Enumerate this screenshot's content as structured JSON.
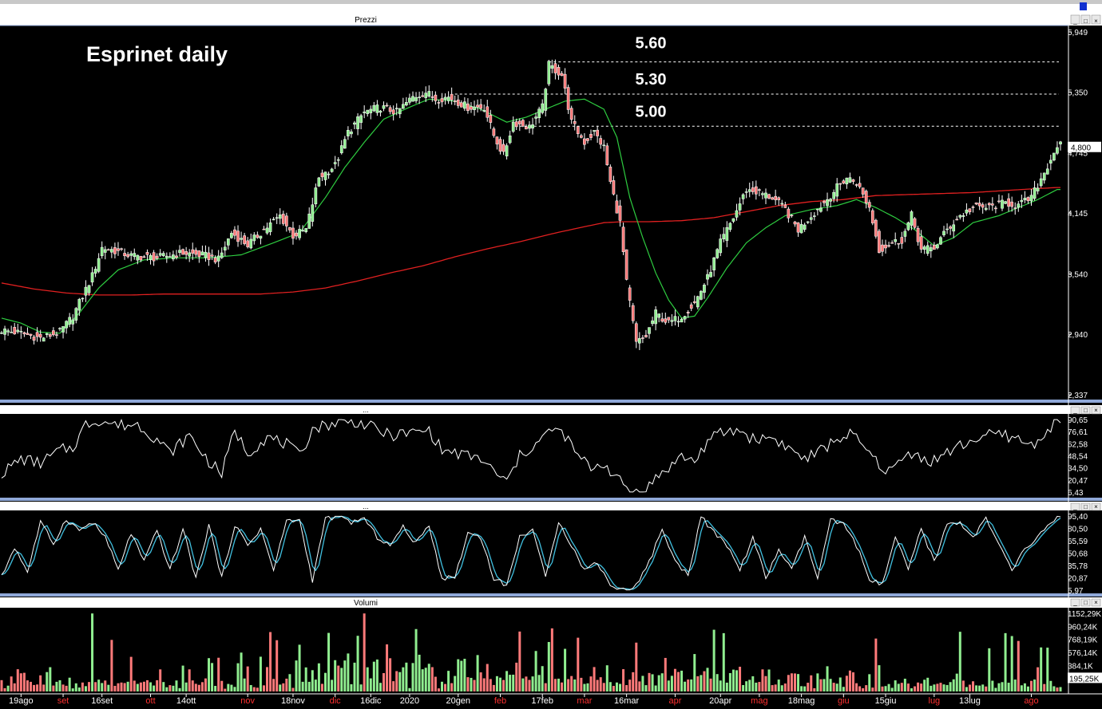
{
  "window": {
    "pane_titles": {
      "price": "Prezzi",
      "osc1": "...",
      "osc2": "...",
      "volume": "Volumi"
    },
    "controls": [
      "_",
      "□",
      "×"
    ]
  },
  "colors": {
    "background": "#000000",
    "up_candle": "#90ee90",
    "down_candle": "#ff7a7a",
    "ma_short": "#2ecc40",
    "ma_long": "#e02020",
    "osc_line": "#ffffff",
    "stoch_k": "#ffffff",
    "stoch_d": "#40c0e0",
    "grid_dash": "#ffffff",
    "pane_border": "#8fa8d8"
  },
  "chart_data": {
    "type": "candlestick",
    "title": "Esprinet daily",
    "levels": [
      {
        "label": "5.60",
        "value": 5.65,
        "from_index": 169
      },
      {
        "label": "5.30",
        "value": 5.33,
        "from_index": 140
      },
      {
        "label": "5.00",
        "value": 5.01,
        "from_index": 160
      }
    ],
    "price_axis": {
      "min": 2.337,
      "max": 5.949,
      "ticks": [
        "5,949",
        "5,350",
        "4,745",
        "4,145",
        "3,540",
        "2,940",
        "2,337"
      ],
      "last_label": "4,800"
    },
    "rsi_axis": {
      "min": 6.43,
      "max": 90.65,
      "ticks": [
        "90,65",
        "76,61",
        "62,58",
        "48,54",
        "34,50",
        "20,47",
        "6,43"
      ]
    },
    "stoch_axis": {
      "min": 5.97,
      "max": 95.4,
      "ticks": [
        "95,40",
        "80,50",
        "65,59",
        "50,68",
        "35,78",
        "20,87",
        "5,97"
      ]
    },
    "volume_axis": {
      "max": 1152290,
      "ticks": [
        "1152,29K",
        "960,24K",
        "768,19K",
        "576,14K",
        "384,1K",
        "195,25K"
      ]
    },
    "x_labels": [
      {
        "text": "19ago",
        "index": 6,
        "color": "#ffffff"
      },
      {
        "text": "set",
        "index": 19,
        "color": "#ff3030"
      },
      {
        "text": "16set",
        "index": 31,
        "color": "#ffffff"
      },
      {
        "text": "ott",
        "index": 46,
        "color": "#ff3030"
      },
      {
        "text": "14ott",
        "index": 57,
        "color": "#ffffff"
      },
      {
        "text": "nov",
        "index": 76,
        "color": "#ff3030"
      },
      {
        "text": "18nov",
        "index": 90,
        "color": "#ffffff"
      },
      {
        "text": "dic",
        "index": 103,
        "color": "#ff3030"
      },
      {
        "text": "16dic",
        "index": 114,
        "color": "#ffffff"
      },
      {
        "text": "2020",
        "index": 126,
        "color": "#ffffff"
      },
      {
        "text": "20gen",
        "index": 141,
        "color": "#ffffff"
      },
      {
        "text": "feb",
        "index": 154,
        "color": "#ff3030"
      },
      {
        "text": "17feb",
        "index": 167,
        "color": "#ffffff"
      },
      {
        "text": "mar",
        "index": 180,
        "color": "#ff3030"
      },
      {
        "text": "16mar",
        "index": 193,
        "color": "#ffffff"
      },
      {
        "text": "apr",
        "index": 208,
        "color": "#ff3030"
      },
      {
        "text": "20apr",
        "index": 222,
        "color": "#ffffff"
      },
      {
        "text": "mag",
        "index": 234,
        "color": "#ff3030"
      },
      {
        "text": "18mag",
        "index": 247,
        "color": "#ffffff"
      },
      {
        "text": "giu",
        "index": 260,
        "color": "#ff3030"
      },
      {
        "text": "15giu",
        "index": 273,
        "color": "#ffffff"
      },
      {
        "text": "lug",
        "index": 288,
        "color": "#ff3030"
      },
      {
        "text": "13lug",
        "index": 299,
        "color": "#ffffff"
      },
      {
        "text": "ago",
        "index": 318,
        "color": "#ff3030"
      }
    ],
    "price_anchors": [
      [
        0,
        2.98
      ],
      [
        6,
        2.95
      ],
      [
        12,
        2.9
      ],
      [
        18,
        2.96
      ],
      [
        22,
        3.12
      ],
      [
        28,
        3.52
      ],
      [
        31,
        3.8
      ],
      [
        34,
        3.78
      ],
      [
        40,
        3.72
      ],
      [
        48,
        3.7
      ],
      [
        56,
        3.75
      ],
      [
        63,
        3.72
      ],
      [
        67,
        3.68
      ],
      [
        71,
        3.95
      ],
      [
        76,
        3.83
      ],
      [
        80,
        3.95
      ],
      [
        86,
        4.12
      ],
      [
        90,
        3.92
      ],
      [
        94,
        3.98
      ],
      [
        98,
        4.5
      ],
      [
        103,
        4.62
      ],
      [
        107,
        4.95
      ],
      [
        112,
        5.15
      ],
      [
        117,
        5.2
      ],
      [
        122,
        5.15
      ],
      [
        127,
        5.3
      ],
      [
        131,
        5.35
      ],
      [
        134,
        5.28
      ],
      [
        138,
        5.3
      ],
      [
        144,
        5.2
      ],
      [
        149,
        5.2
      ],
      [
        152,
        4.92
      ],
      [
        155,
        4.72
      ],
      [
        158,
        5.05
      ],
      [
        163,
        5.0
      ],
      [
        167,
        5.2
      ],
      [
        169,
        5.62
      ],
      [
        173,
        5.52
      ],
      [
        176,
        5.05
      ],
      [
        180,
        4.85
      ],
      [
        183,
        4.95
      ],
      [
        186,
        4.8
      ],
      [
        188,
        4.45
      ],
      [
        191,
        4.05
      ],
      [
        193,
        3.45
      ],
      [
        196,
        2.85
      ],
      [
        199,
        2.92
      ],
      [
        202,
        3.15
      ],
      [
        206,
        3.05
      ],
      [
        210,
        3.12
      ],
      [
        214,
        3.25
      ],
      [
        218,
        3.5
      ],
      [
        222,
        3.85
      ],
      [
        226,
        4.1
      ],
      [
        230,
        4.38
      ],
      [
        234,
        4.35
      ],
      [
        238,
        4.3
      ],
      [
        242,
        4.18
      ],
      [
        246,
        3.98
      ],
      [
        250,
        4.12
      ],
      [
        254,
        4.25
      ],
      [
        258,
        4.4
      ],
      [
        261,
        4.5
      ],
      [
        264,
        4.45
      ],
      [
        268,
        4.2
      ],
      [
        271,
        3.78
      ],
      [
        275,
        3.85
      ],
      [
        278,
        3.88
      ],
      [
        281,
        4.12
      ],
      [
        284,
        3.78
      ],
      [
        288,
        3.8
      ],
      [
        292,
        3.98
      ],
      [
        296,
        4.12
      ],
      [
        300,
        4.2
      ],
      [
        305,
        4.2
      ],
      [
        310,
        4.25
      ],
      [
        314,
        4.22
      ],
      [
        318,
        4.3
      ],
      [
        322,
        4.55
      ],
      [
        326,
        4.82
      ]
    ],
    "ma_short_anchors": [
      [
        0,
        3.1
      ],
      [
        6,
        3.05
      ],
      [
        12,
        2.96
      ],
      [
        18,
        2.95
      ],
      [
        24,
        3.15
      ],
      [
        30,
        3.4
      ],
      [
        36,
        3.58
      ],
      [
        44,
        3.68
      ],
      [
        54,
        3.7
      ],
      [
        64,
        3.7
      ],
      [
        74,
        3.73
      ],
      [
        84,
        3.85
      ],
      [
        92,
        3.95
      ],
      [
        100,
        4.3
      ],
      [
        106,
        4.6
      ],
      [
        112,
        4.85
      ],
      [
        118,
        5.08
      ],
      [
        126,
        5.2
      ],
      [
        132,
        5.28
      ],
      [
        140,
        5.26
      ],
      [
        148,
        5.18
      ],
      [
        156,
        5.05
      ],
      [
        162,
        5.1
      ],
      [
        168,
        5.18
      ],
      [
        174,
        5.26
      ],
      [
        180,
        5.28
      ],
      [
        186,
        5.18
      ],
      [
        190,
        4.9
      ],
      [
        194,
        4.3
      ],
      [
        198,
        3.9
      ],
      [
        202,
        3.55
      ],
      [
        206,
        3.28
      ],
      [
        210,
        3.1
      ],
      [
        214,
        3.12
      ],
      [
        218,
        3.3
      ],
      [
        224,
        3.6
      ],
      [
        230,
        3.85
      ],
      [
        236,
        4.0
      ],
      [
        242,
        4.12
      ],
      [
        250,
        4.18
      ],
      [
        258,
        4.22
      ],
      [
        264,
        4.28
      ],
      [
        270,
        4.2
      ],
      [
        276,
        4.1
      ],
      [
        282,
        3.98
      ],
      [
        288,
        3.82
      ],
      [
        294,
        3.9
      ],
      [
        300,
        4.05
      ],
      [
        308,
        4.12
      ],
      [
        314,
        4.2
      ],
      [
        320,
        4.28
      ],
      [
        326,
        4.38
      ]
    ],
    "ma_long_anchors": [
      [
        0,
        3.45
      ],
      [
        10,
        3.39
      ],
      [
        20,
        3.35
      ],
      [
        30,
        3.33
      ],
      [
        40,
        3.33
      ],
      [
        50,
        3.34
      ],
      [
        60,
        3.34
      ],
      [
        70,
        3.34
      ],
      [
        80,
        3.34
      ],
      [
        90,
        3.36
      ],
      [
        100,
        3.4
      ],
      [
        110,
        3.47
      ],
      [
        120,
        3.55
      ],
      [
        130,
        3.62
      ],
      [
        140,
        3.71
      ],
      [
        150,
        3.79
      ],
      [
        160,
        3.86
      ],
      [
        170,
        3.94
      ],
      [
        180,
        4.01
      ],
      [
        186,
        4.05
      ],
      [
        192,
        4.06
      ],
      [
        200,
        4.06
      ],
      [
        210,
        4.07
      ],
      [
        220,
        4.1
      ],
      [
        230,
        4.16
      ],
      [
        240,
        4.22
      ],
      [
        250,
        4.26
      ],
      [
        260,
        4.28
      ],
      [
        270,
        4.32
      ],
      [
        280,
        4.33
      ],
      [
        290,
        4.34
      ],
      [
        300,
        4.35
      ],
      [
        310,
        4.37
      ],
      [
        320,
        4.39
      ],
      [
        326,
        4.4
      ]
    ],
    "rsi_anchors": [
      [
        0,
        28
      ],
      [
        6,
        45
      ],
      [
        12,
        40
      ],
      [
        18,
        55
      ],
      [
        22,
        58
      ],
      [
        26,
        85
      ],
      [
        30,
        90
      ],
      [
        36,
        84
      ],
      [
        42,
        85
      ],
      [
        48,
        68
      ],
      [
        52,
        52
      ],
      [
        58,
        72
      ],
      [
        64,
        42
      ],
      [
        68,
        28
      ],
      [
        72,
        78
      ],
      [
        76,
        52
      ],
      [
        82,
        70
      ],
      [
        88,
        62
      ],
      [
        92,
        48
      ],
      [
        96,
        80
      ],
      [
        102,
        86
      ],
      [
        108,
        90
      ],
      [
        114,
        82
      ],
      [
        120,
        72
      ],
      [
        126,
        75
      ],
      [
        132,
        78
      ],
      [
        136,
        55
      ],
      [
        142,
        50
      ],
      [
        148,
        45
      ],
      [
        152,
        30
      ],
      [
        156,
        18
      ],
      [
        160,
        48
      ],
      [
        166,
        65
      ],
      [
        170,
        80
      ],
      [
        174,
        72
      ],
      [
        178,
        48
      ],
      [
        182,
        35
      ],
      [
        186,
        40
      ],
      [
        190,
        22
      ],
      [
        194,
        8
      ],
      [
        198,
        7
      ],
      [
        202,
        22
      ],
      [
        206,
        35
      ],
      [
        210,
        48
      ],
      [
        214,
        42
      ],
      [
        218,
        65
      ],
      [
        222,
        75
      ],
      [
        228,
        78
      ],
      [
        232,
        68
      ],
      [
        238,
        70
      ],
      [
        244,
        55
      ],
      [
        248,
        45
      ],
      [
        252,
        52
      ],
      [
        258,
        68
      ],
      [
        262,
        74
      ],
      [
        266,
        60
      ],
      [
        270,
        42
      ],
      [
        274,
        30
      ],
      [
        278,
        44
      ],
      [
        282,
        55
      ],
      [
        286,
        40
      ],
      [
        290,
        48
      ],
      [
        296,
        60
      ],
      [
        302,
        70
      ],
      [
        308,
        74
      ],
      [
        314,
        68
      ],
      [
        318,
        60
      ],
      [
        322,
        74
      ],
      [
        326,
        88
      ]
    ],
    "stoch_k_anchors": [
      [
        0,
        22
      ],
      [
        4,
        58
      ],
      [
        8,
        28
      ],
      [
        12,
        88
      ],
      [
        16,
        62
      ],
      [
        20,
        92
      ],
      [
        24,
        78
      ],
      [
        28,
        88
      ],
      [
        32,
        70
      ],
      [
        36,
        30
      ],
      [
        40,
        75
      ],
      [
        44,
        40
      ],
      [
        48,
        78
      ],
      [
        52,
        30
      ],
      [
        56,
        80
      ],
      [
        60,
        20
      ],
      [
        64,
        85
      ],
      [
        68,
        20
      ],
      [
        72,
        85
      ],
      [
        76,
        60
      ],
      [
        80,
        80
      ],
      [
        84,
        30
      ],
      [
        88,
        90
      ],
      [
        92,
        90
      ],
      [
        96,
        18
      ],
      [
        100,
        92
      ],
      [
        104,
        95
      ],
      [
        108,
        88
      ],
      [
        112,
        92
      ],
      [
        116,
        70
      ],
      [
        120,
        60
      ],
      [
        124,
        82
      ],
      [
        128,
        62
      ],
      [
        132,
        85
      ],
      [
        136,
        20
      ],
      [
        140,
        22
      ],
      [
        144,
        75
      ],
      [
        148,
        70
      ],
      [
        152,
        20
      ],
      [
        156,
        12
      ],
      [
        160,
        70
      ],
      [
        164,
        80
      ],
      [
        168,
        20
      ],
      [
        172,
        90
      ],
      [
        176,
        60
      ],
      [
        180,
        30
      ],
      [
        184,
        40
      ],
      [
        188,
        12
      ],
      [
        192,
        6
      ],
      [
        196,
        12
      ],
      [
        200,
        40
      ],
      [
        204,
        80
      ],
      [
        208,
        40
      ],
      [
        212,
        25
      ],
      [
        216,
        95
      ],
      [
        220,
        75
      ],
      [
        224,
        60
      ],
      [
        228,
        30
      ],
      [
        232,
        70
      ],
      [
        236,
        20
      ],
      [
        240,
        55
      ],
      [
        244,
        30
      ],
      [
        248,
        70
      ],
      [
        252,
        20
      ],
      [
        256,
        90
      ],
      [
        260,
        85
      ],
      [
        264,
        60
      ],
      [
        268,
        20
      ],
      [
        272,
        12
      ],
      [
        276,
        70
      ],
      [
        280,
        30
      ],
      [
        284,
        80
      ],
      [
        288,
        40
      ],
      [
        292,
        85
      ],
      [
        296,
        88
      ],
      [
        300,
        70
      ],
      [
        304,
        92
      ],
      [
        308,
        60
      ],
      [
        312,
        30
      ],
      [
        316,
        55
      ],
      [
        320,
        70
      ],
      [
        326,
        95
      ]
    ],
    "volume_pattern": [
      130,
      90,
      160,
      220,
      110,
      300,
      180,
      95,
      420,
      140,
      260,
      80,
      350,
      200,
      120,
      600,
      150,
      240,
      90,
      310,
      700,
      180,
      130,
      450,
      260,
      110,
      380,
      170,
      90,
      520,
      230,
      140
    ],
    "volume_spikes": [
      [
        28,
        1150
      ],
      [
        112,
        1150
      ],
      [
        128,
        920
      ],
      [
        34,
        760
      ],
      [
        170,
        930
      ],
      [
        196,
        720
      ],
      [
        220,
        910
      ],
      [
        270,
        780
      ],
      [
        296,
        880
      ],
      [
        310,
        860
      ]
    ]
  }
}
